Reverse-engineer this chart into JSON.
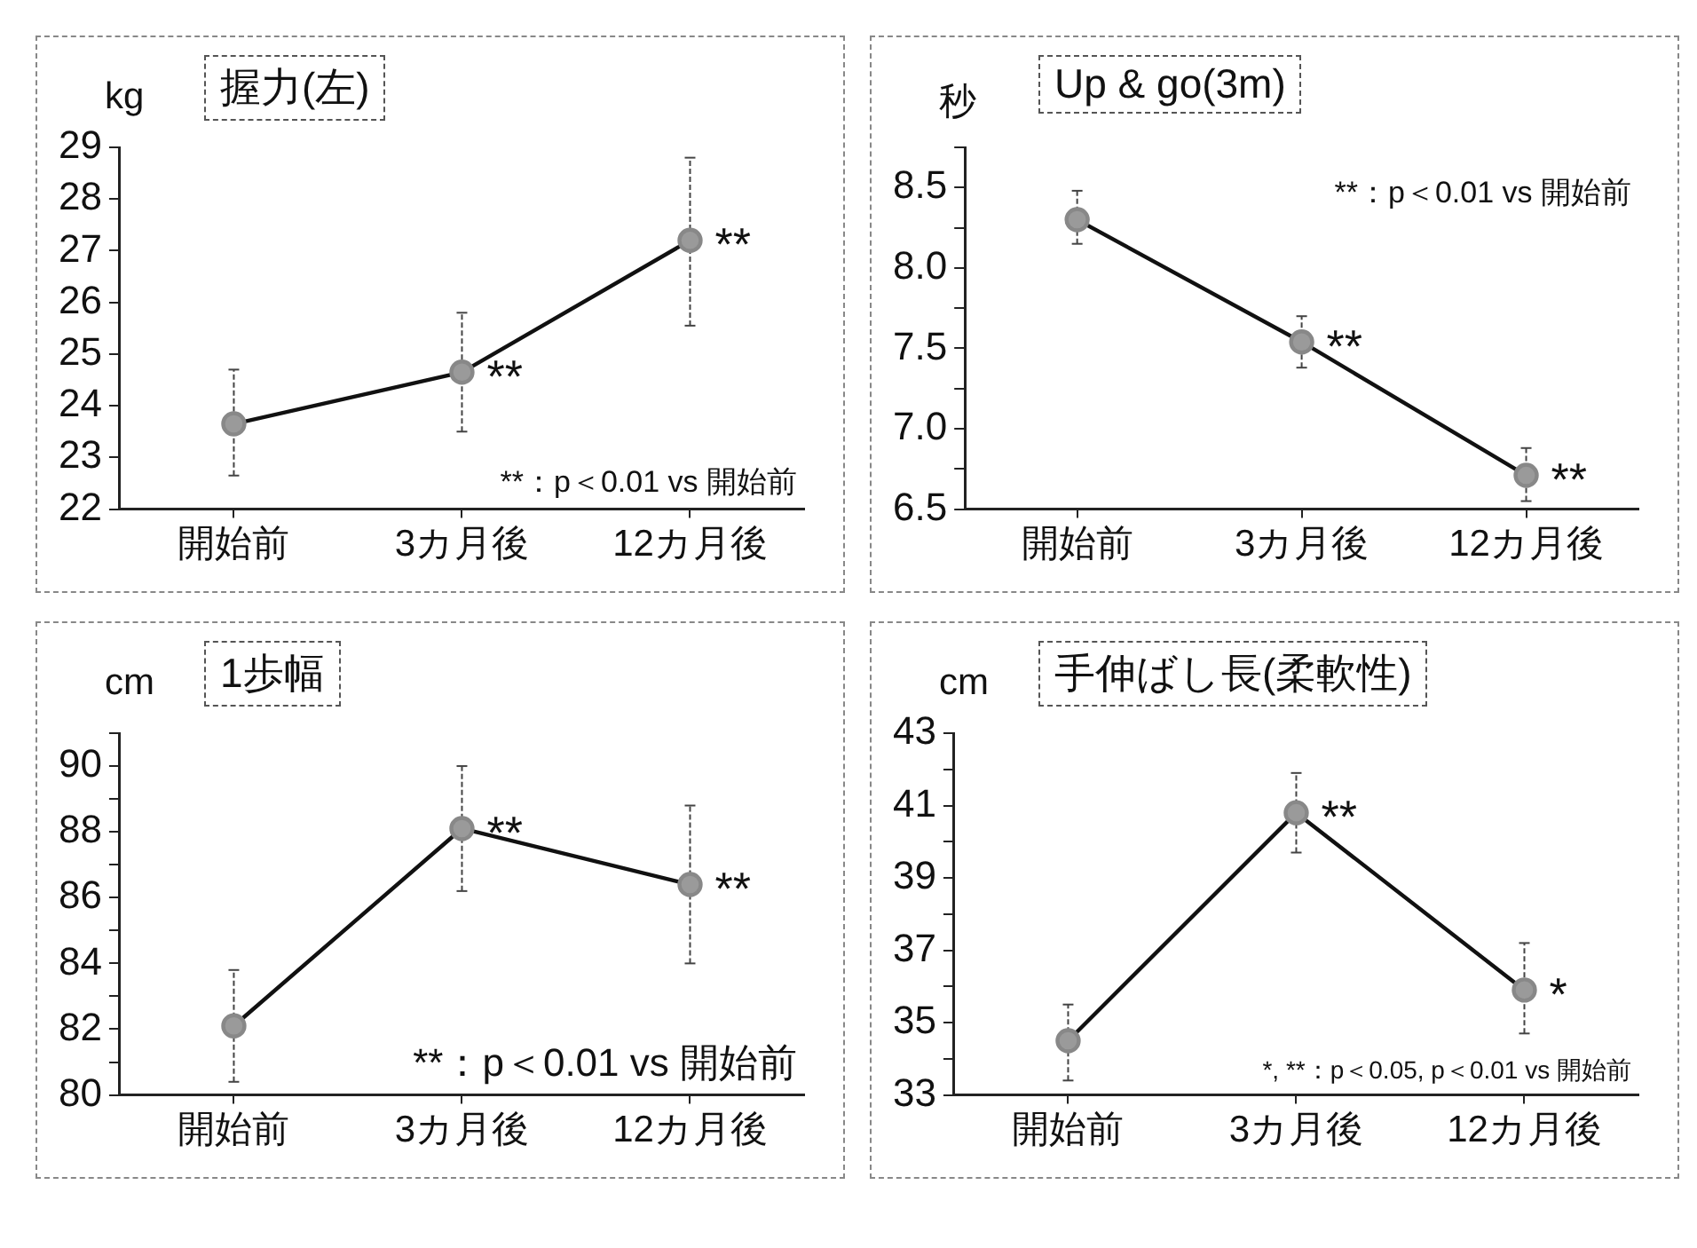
{
  "chart_data": [
    {
      "type": "line",
      "title": "握力(左)",
      "ylabel": "kg",
      "categories": [
        "開始前",
        "3カ月後",
        "12カ月後"
      ],
      "marker": "circle",
      "line_style": "solid",
      "series": [
        {
          "color": "#111111",
          "values": [
            23.65,
            24.65,
            27.2
          ],
          "errors": [
            [
              22.65,
              24.7
            ],
            [
              23.5,
              25.8
            ],
            [
              25.55,
              28.8
            ]
          ]
        }
      ],
      "ylim": [
        22,
        29
      ],
      "yticks": [
        22,
        23,
        24,
        25,
        26,
        27,
        28,
        29
      ],
      "annotations": [
        {
          "text": "**",
          "x": "3カ月後",
          "y": 24.65
        },
        {
          "text": "**",
          "x": "12カ月後",
          "y": 27.2
        },
        "**：p＜0.01 vs 開始前"
      ]
    },
    {
      "type": "line",
      "title": "Up & go(3m)",
      "ylabel": "秒",
      "categories": [
        "開始前",
        "3カ月後",
        "12カ月後"
      ],
      "marker": "circle",
      "line_style": "solid",
      "series": [
        {
          "color": "#111111",
          "values": [
            8.3,
            7.54,
            6.71
          ],
          "errors": [
            [
              8.15,
              8.48
            ],
            [
              7.38,
              7.7
            ],
            [
              6.55,
              6.88
            ]
          ]
        }
      ],
      "ylim": [
        6.5,
        8.75
      ],
      "yticks": [
        {
          "value": 6.5,
          "label": "6.5"
        },
        {
          "value": 6.75,
          "label": null
        },
        {
          "value": 7,
          "label": "7.0"
        },
        {
          "value": 7.25,
          "label": null
        },
        {
          "value": 7.5,
          "label": "7.5"
        },
        {
          "value": 7.75,
          "label": null
        },
        {
          "value": 8,
          "label": "8.0"
        },
        {
          "value": 8.25,
          "label": null
        },
        {
          "value": 8.5,
          "label": "8.5"
        },
        {
          "value": 8.75,
          "label": null
        }
      ],
      "annotations": [
        {
          "text": "**",
          "x": "3カ月後",
          "y": 7.54
        },
        {
          "text": "**",
          "x": "12カ月後",
          "y": 6.71
        },
        "**：p＜0.01 vs 開始前"
      ]
    },
    {
      "type": "line",
      "title": "1歩幅",
      "ylabel": "cm",
      "categories": [
        "開始前",
        "3カ月後",
        "12カ月後"
      ],
      "marker": "circle",
      "line_style": "solid",
      "series": [
        {
          "color": "#111111",
          "values": [
            82.1,
            88.1,
            86.4
          ],
          "errors": [
            [
              80.4,
              83.8
            ],
            [
              86.2,
              90
            ],
            [
              84,
              88.8
            ]
          ]
        }
      ],
      "ylim": [
        80,
        91
      ],
      "yticks": [
        80,
        {
          "value": 81,
          "label": null
        },
        82,
        {
          "value": 83,
          "label": null
        },
        84,
        {
          "value": 85,
          "label": null
        },
        86,
        {
          "value": 87,
          "label": null
        },
        88,
        {
          "value": 89,
          "label": null
        },
        90,
        {
          "value": 91,
          "label": null
        }
      ],
      "annotations": [
        {
          "text": "**",
          "x": "3カ月後",
          "y": 88.1
        },
        {
          "text": "**",
          "x": "12カ月後",
          "y": 86.4
        },
        "**：p＜0.01 vs 開始前"
      ]
    },
    {
      "type": "line",
      "title": "手伸ばし長(柔軟性)",
      "ylabel": "cm",
      "categories": [
        "開始前",
        "3カ月後",
        "12カ月後"
      ],
      "marker": "circle",
      "line_style": "solid",
      "series": [
        {
          "color": "#111111",
          "values": [
            34.5,
            40.8,
            35.9
          ],
          "errors": [
            [
              33.4,
              35.5
            ],
            [
              39.7,
              41.9
            ],
            [
              34.7,
              37.2
            ]
          ]
        }
      ],
      "ylim": [
        33,
        43
      ],
      "yticks": [
        33,
        {
          "value": 34,
          "label": null
        },
        35,
        {
          "value": 36,
          "label": null
        },
        37,
        {
          "value": 38,
          "label": null
        },
        39,
        {
          "value": 40,
          "label": null
        },
        41,
        {
          "value": 42,
          "label": null
        },
        43
      ],
      "annotations": [
        {
          "text": "**",
          "x": "3カ月後",
          "y": 40.8
        },
        {
          "text": "*",
          "x": "12カ月後",
          "y": 35.9
        },
        "*, **：p＜0.05, p＜0.01 vs 開始前"
      ]
    }
  ]
}
